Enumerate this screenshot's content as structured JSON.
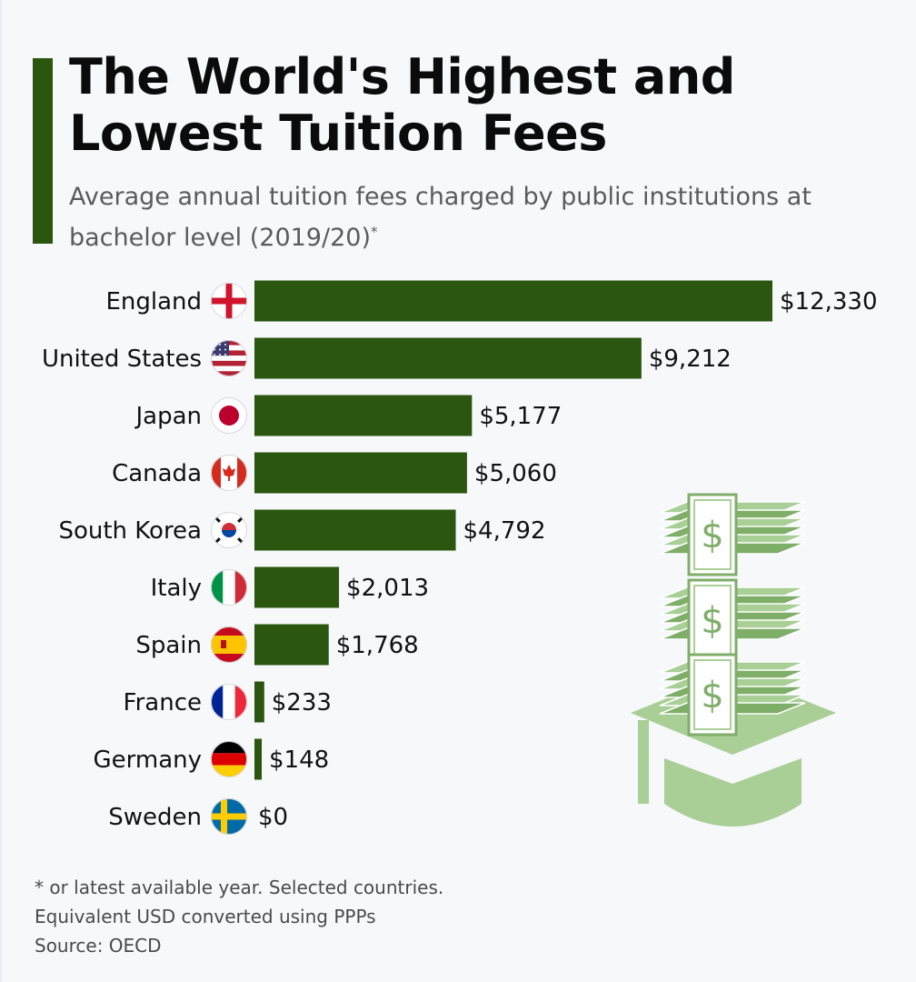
{
  "title_line1": "The World's Highest and",
  "title_line2": "Lowest Tuition Fees",
  "subtitle_main": "Average annual tuition fees charged by public institutions at bachelor level (2019/20)",
  "subtitle_sup": "*",
  "footer": {
    "note_line1": "* or latest available year. Selected countries.",
    "note_line2": "Equivalent USD converted using PPPs",
    "source": "Source: OECD"
  },
  "colors": {
    "bar": "#2a5610",
    "illustration": "#a9cf96",
    "illustration_dark": "#7fae69"
  },
  "illustration": {
    "icon": "money-stack-graduation-cap-icon",
    "symbol": "$"
  },
  "chart_data": {
    "type": "bar",
    "orientation": "horizontal",
    "title": "The World's Highest and Lowest Tuition Fees",
    "subtitle": "Average annual tuition fees charged by public institutions at bachelor level (2019/20)*",
    "categories": [
      "England",
      "United States",
      "Japan",
      "Canada",
      "South Korea",
      "Italy",
      "Spain",
      "France",
      "Germany",
      "Sweden"
    ],
    "values": [
      12330,
      9212,
      5177,
      5060,
      4792,
      2013,
      1768,
      233,
      148,
      0
    ],
    "value_labels": [
      "$12,330",
      "$9,212",
      "$5,177",
      "$5,060",
      "$4,792",
      "$2,013",
      "$1,768",
      "$233",
      "$148",
      "$0"
    ],
    "flags": [
      "england-flag-icon",
      "usa-flag-icon",
      "japan-flag-icon",
      "canada-flag-icon",
      "south-korea-flag-icon",
      "italy-flag-icon",
      "spain-flag-icon",
      "france-flag-icon",
      "germany-flag-icon",
      "sweden-flag-icon"
    ],
    "xlabel": "",
    "ylabel": "",
    "xlim": [
      0,
      12330
    ],
    "grid": false,
    "legend": "none"
  }
}
